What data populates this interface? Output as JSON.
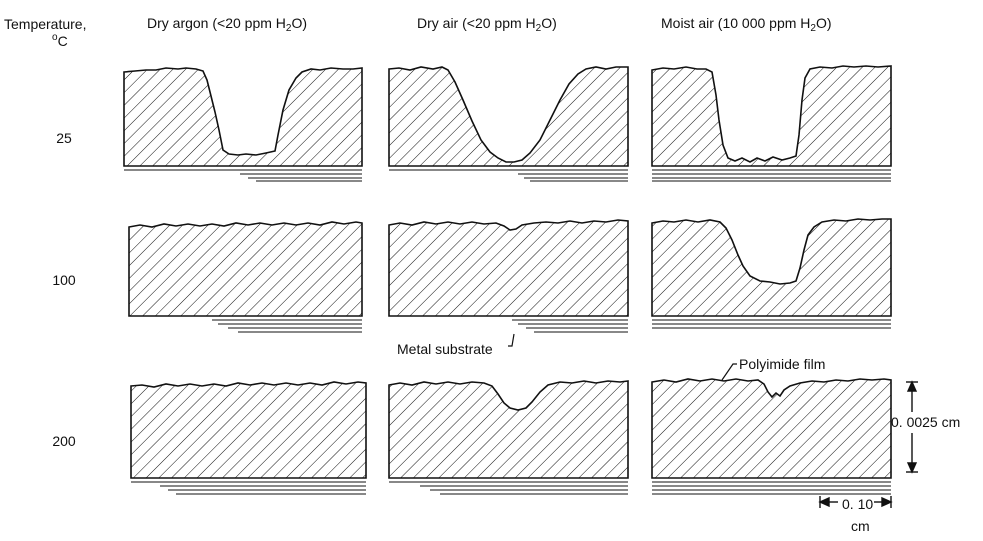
{
  "header": {
    "temperature_label": "Temperature,",
    "temperature_unit_sup": "o",
    "temperature_unit": "C"
  },
  "columns": [
    {
      "prefix": "Dry argon (<20 ppm H",
      "sub": "2",
      "suffix": "O)"
    },
    {
      "prefix": "Dry air (<20 ppm H",
      "sub": "2",
      "suffix": "O)"
    },
    {
      "prefix": "Moist air (10 000 ppm H",
      "sub": "2",
      "suffix": "O)"
    }
  ],
  "rows": [
    "25",
    "100",
    "200"
  ],
  "annotations": {
    "metal_substrate": "Metal substrate",
    "polyimide_film": "Polyimide film",
    "vertical_scale": "0. 0025 cm",
    "horizontal_scale_value": "0. 10",
    "horizontal_scale_unit": "cm"
  },
  "colors": {
    "ink": "#111111"
  }
}
